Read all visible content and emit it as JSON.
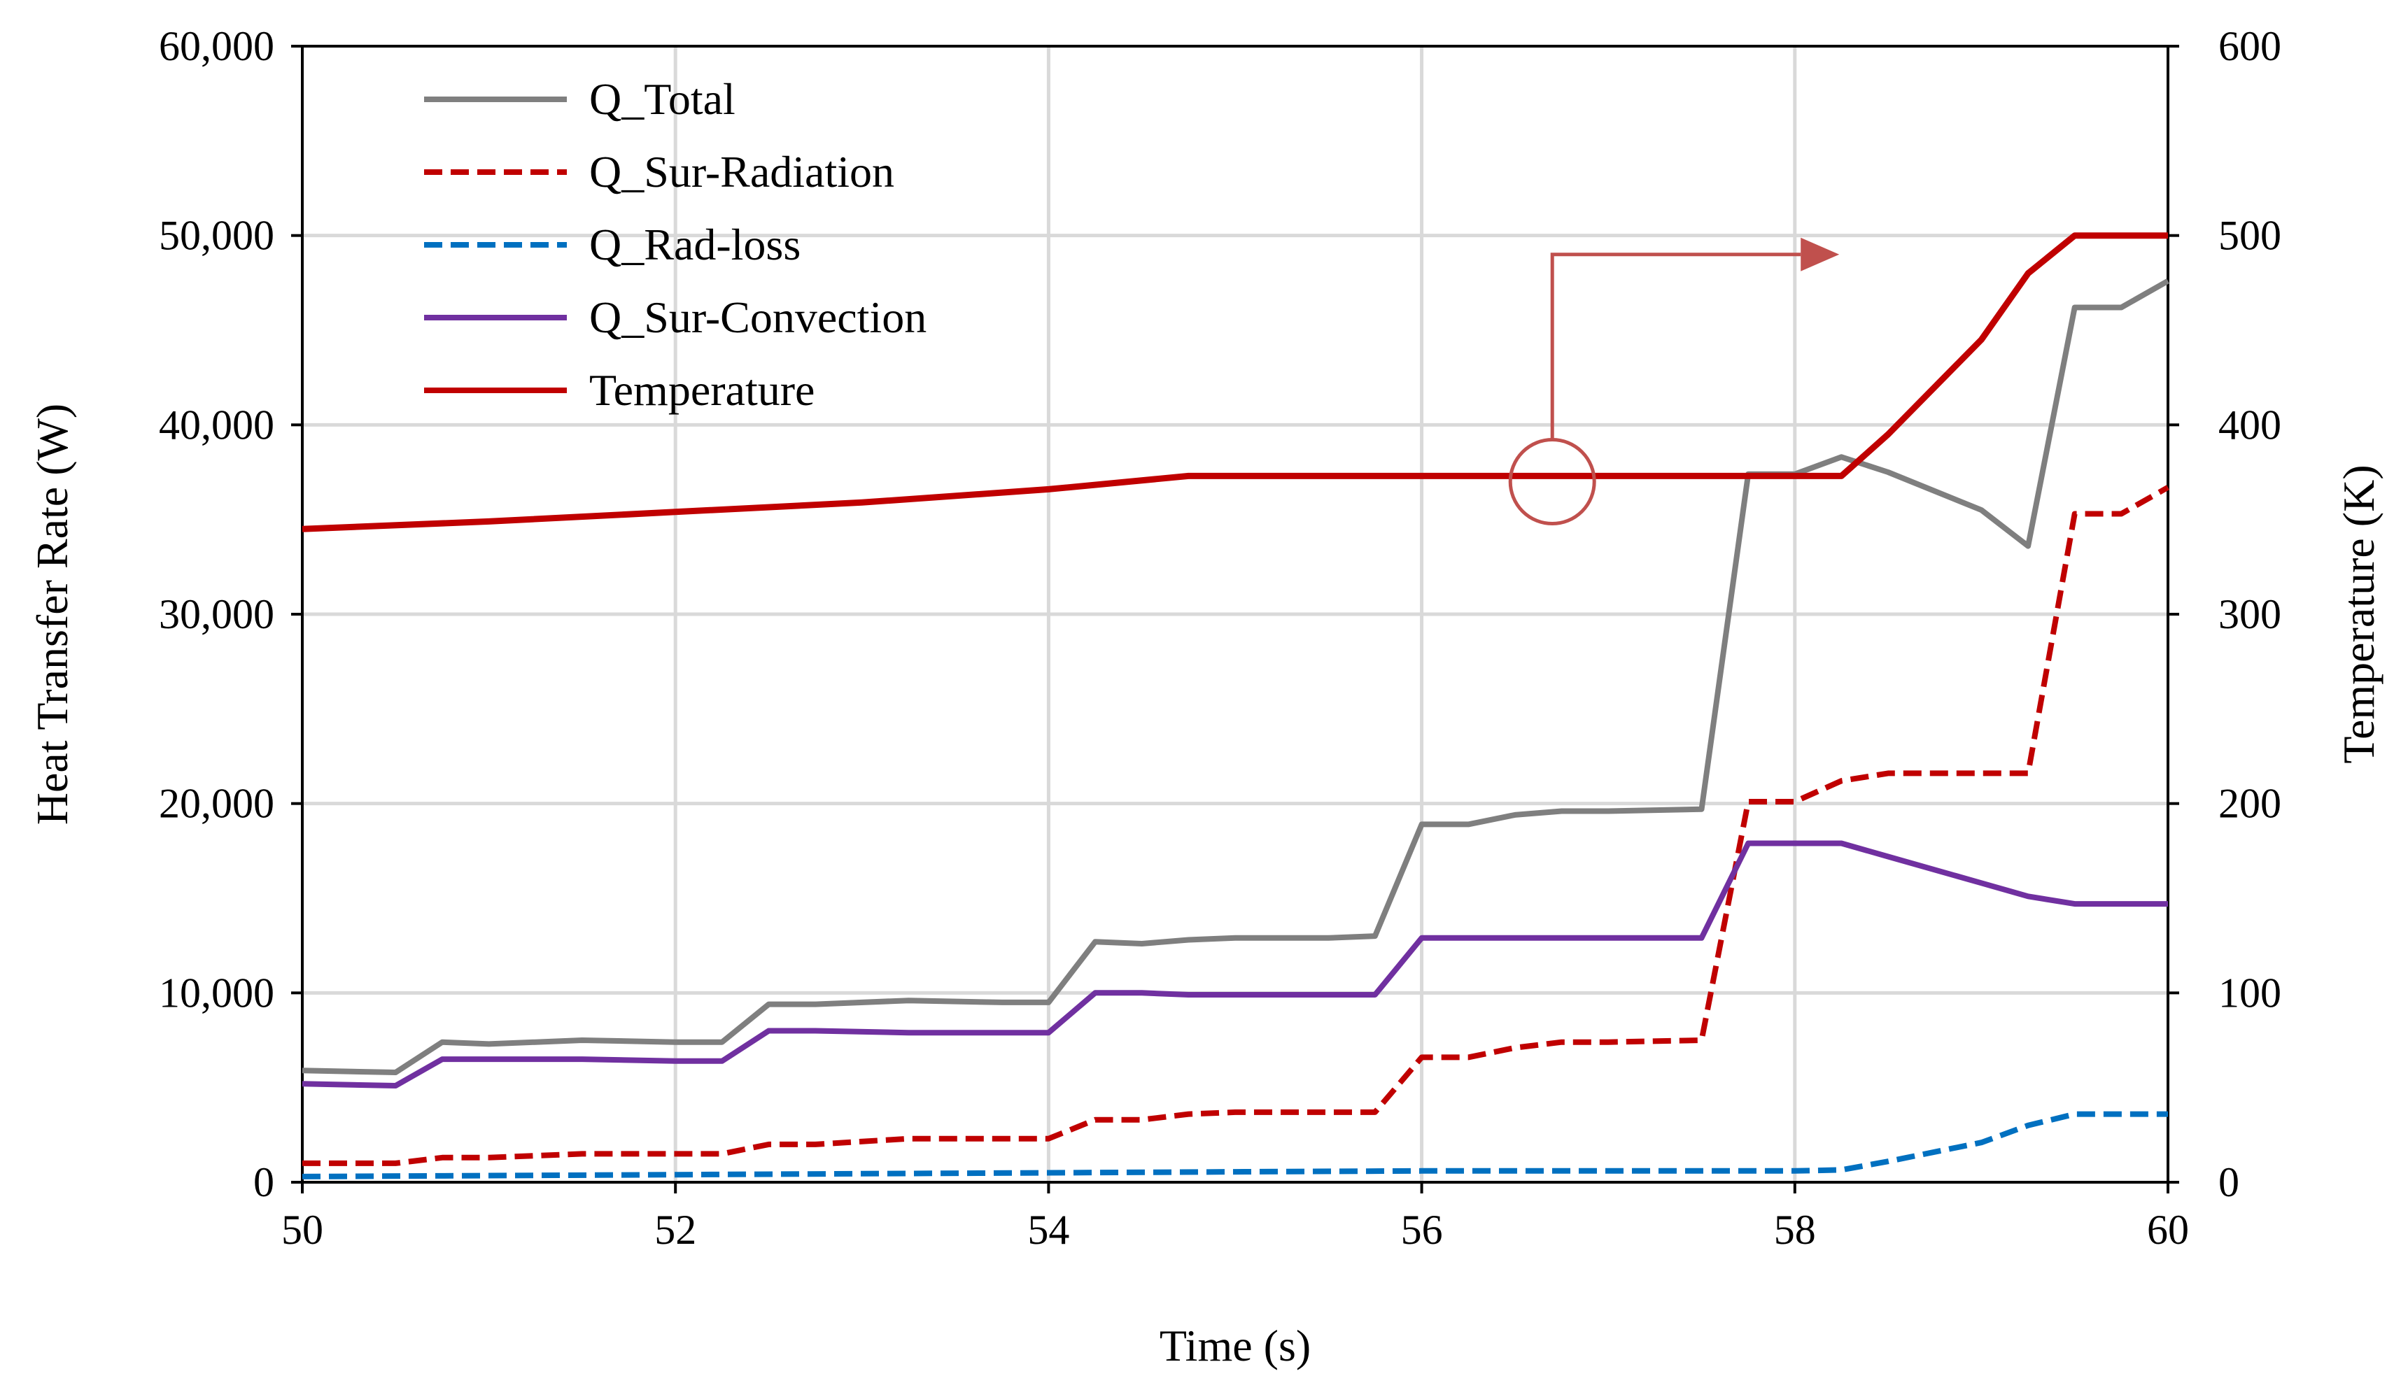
{
  "chart_data": {
    "type": "line",
    "title": "",
    "xlabel": "Time (s)",
    "ylabel": "Heat Transfer Rate (W)",
    "y2label": "Temperature (K)",
    "xlim": [
      50,
      60
    ],
    "ylim": [
      0,
      60000
    ],
    "y2lim": [
      0,
      600
    ],
    "grid": true,
    "legend_position": "top-left",
    "x_ticks": [
      {
        "value": 50,
        "label": "50"
      },
      {
        "value": 52,
        "label": "52"
      },
      {
        "value": 54,
        "label": "54"
      },
      {
        "value": 56,
        "label": "56"
      },
      {
        "value": 58,
        "label": "58"
      },
      {
        "value": 60,
        "label": "60"
      }
    ],
    "y_ticks": [
      {
        "value": 0,
        "label": "0"
      },
      {
        "value": 10000,
        "label": "10,000"
      },
      {
        "value": 20000,
        "label": "20,000"
      },
      {
        "value": 30000,
        "label": "30,000"
      },
      {
        "value": 40000,
        "label": "40,000"
      },
      {
        "value": 50000,
        "label": "50,000"
      },
      {
        "value": 60000,
        "label": "60,000"
      }
    ],
    "y2_ticks": [
      {
        "value": 0,
        "label": "0"
      },
      {
        "value": 100,
        "label": "100"
      },
      {
        "value": 200,
        "label": "200"
      },
      {
        "value": 300,
        "label": "300"
      },
      {
        "value": 400,
        "label": "400"
      },
      {
        "value": 500,
        "label": "500"
      },
      {
        "value": 600,
        "label": "600"
      }
    ],
    "series": [
      {
        "name": "Q_Total",
        "axis": "left",
        "color": "#7f7f7f",
        "dash": "solid",
        "x": [
          50,
          50.5,
          50.75,
          51,
          51.5,
          52,
          52.25,
          52.5,
          52.75,
          53.25,
          53.75,
          54,
          54.25,
          54.5,
          54.75,
          55,
          55.5,
          55.75,
          56,
          56.25,
          56.5,
          56.75,
          57,
          57.5,
          57.75,
          58,
          58.25,
          58.5,
          59,
          59.25,
          59.5,
          59.75,
          60
        ],
        "values": [
          5900,
          5800,
          7400,
          7300,
          7500,
          7400,
          7400,
          9400,
          9400,
          9600,
          9500,
          9500,
          12700,
          12600,
          12800,
          12900,
          12900,
          13000,
          18900,
          18900,
          19400,
          19600,
          19600,
          19700,
          37400,
          37400,
          38300,
          37500,
          35500,
          33600,
          46200,
          46200,
          47600
        ]
      },
      {
        "name": "Q_Sur-Radiation",
        "axis": "left",
        "color": "#c00000",
        "dash": "dashed",
        "x": [
          50,
          50.5,
          50.75,
          51,
          51.5,
          52,
          52.25,
          52.5,
          52.75,
          53.25,
          53.75,
          54,
          54.25,
          54.5,
          54.75,
          55,
          55.5,
          55.75,
          56,
          56.25,
          56.5,
          56.75,
          57,
          57.5,
          57.75,
          58,
          58.25,
          58.5,
          59,
          59.25,
          59.5,
          59.75,
          60
        ],
        "values": [
          1000,
          1000,
          1300,
          1300,
          1500,
          1500,
          1500,
          2000,
          2000,
          2300,
          2300,
          2300,
          3300,
          3300,
          3600,
          3700,
          3700,
          3700,
          6600,
          6600,
          7100,
          7400,
          7400,
          7500,
          20100,
          20100,
          21200,
          21600,
          21600,
          21600,
          35300,
          35300,
          36700
        ]
      },
      {
        "name": "Q_Rad-loss",
        "axis": "left",
        "color": "#0070c0",
        "dash": "dashed",
        "x": [
          50,
          51,
          52,
          53,
          54,
          55,
          56,
          57,
          58,
          58.25,
          58.5,
          59,
          59.25,
          59.5,
          59.75,
          60
        ],
        "values": [
          300,
          350,
          400,
          450,
          500,
          550,
          600,
          600,
          600,
          650,
          1100,
          2100,
          3000,
          3600,
          3600,
          3600
        ]
      },
      {
        "name": "Q_Sur-Convection",
        "axis": "left",
        "color": "#7030a0",
        "dash": "solid",
        "x": [
          50,
          50.5,
          50.75,
          51,
          51.5,
          52,
          52.25,
          52.5,
          52.75,
          53.25,
          53.75,
          54,
          54.25,
          54.5,
          54.75,
          55,
          55.5,
          55.75,
          56,
          56.25,
          56.5,
          56.75,
          57,
          57.5,
          57.75,
          58,
          58.25,
          58.5,
          59,
          59.25,
          59.5,
          59.75,
          60
        ],
        "values": [
          5200,
          5100,
          6500,
          6500,
          6500,
          6400,
          6400,
          8000,
          8000,
          7900,
          7900,
          7900,
          10000,
          10000,
          9900,
          9900,
          9900,
          9900,
          12900,
          12900,
          12900,
          12900,
          12900,
          12900,
          17900,
          17900,
          17900,
          17200,
          15800,
          15100,
          14700,
          14700,
          14700
        ]
      },
      {
        "name": "Temperature",
        "axis": "right",
        "color": "#c00000",
        "dash": "solid",
        "x": [
          50,
          51,
          52,
          53,
          54,
          54.75,
          55,
          56,
          57,
          58,
          58.25,
          58.5,
          59,
          59.25,
          59.5,
          60
        ],
        "values": [
          345,
          349,
          354,
          359,
          366,
          373,
          373,
          373,
          373,
          373,
          373,
          395,
          445,
          480,
          500,
          500
        ]
      }
    ],
    "annotation": {
      "marker": "circle-with-arrow",
      "points_to": "right-axis",
      "x": 56.7,
      "y": 370
    }
  }
}
